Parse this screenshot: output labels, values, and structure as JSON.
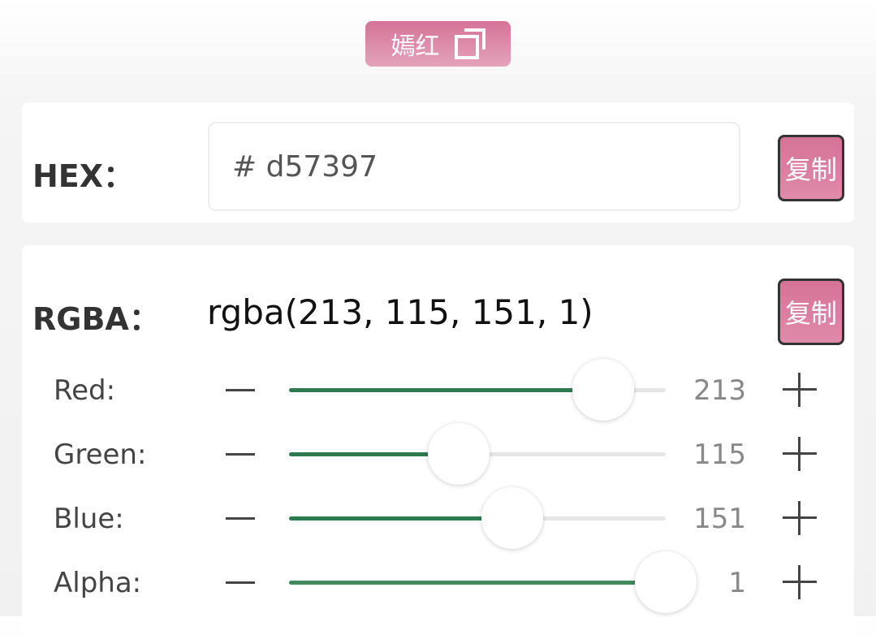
{
  "color_name": "嫣红",
  "hex": {
    "label": "HEX：",
    "value": "# d57397",
    "copy_label": "复制"
  },
  "rgba": {
    "label": "RGBA：",
    "value": "rgba(213, 115, 151, 1)",
    "copy_label": "复制"
  },
  "sliders": [
    {
      "label": "Red:",
      "value": "213",
      "fraction": 0.835
    },
    {
      "label": "Green:",
      "value": "115",
      "fraction": 0.451
    },
    {
      "label": "Blue:",
      "value": "151",
      "fraction": 0.592
    },
    {
      "label": "Alpha:",
      "value": "1",
      "fraction": 1.0
    }
  ],
  "colors": {
    "accent": "#d57397",
    "slider_fill": "#2e7a4f"
  }
}
